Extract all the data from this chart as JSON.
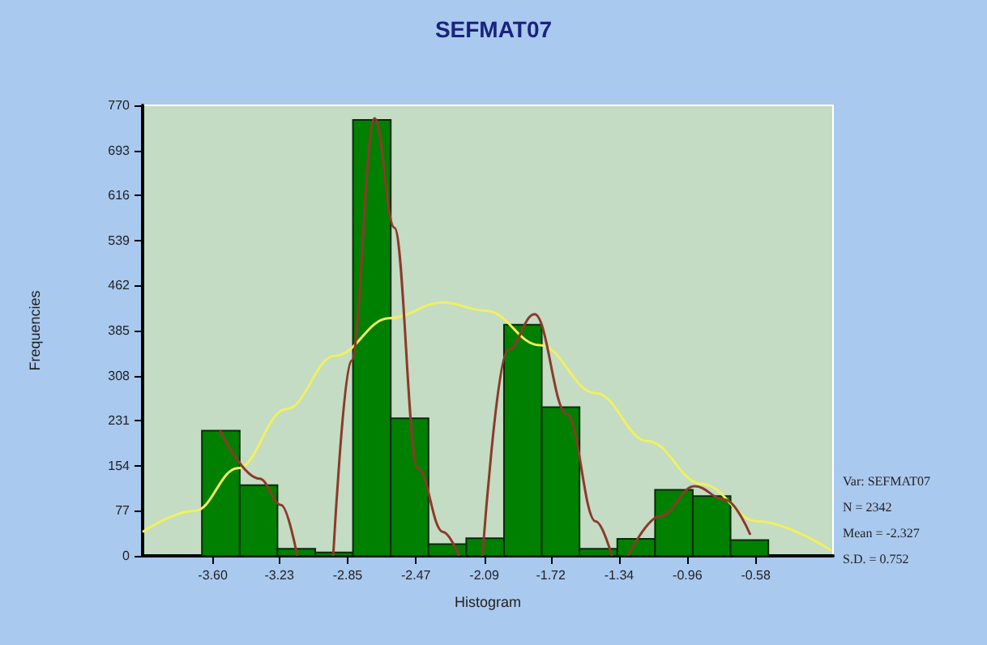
{
  "chart_data": {
    "type": "histogram",
    "title": "SEFMAT07",
    "xlabel": "Histogram",
    "ylabel": "Frequencies",
    "bins": [
      -3.66,
      -3.45,
      -3.24,
      -3.03,
      -2.82,
      -2.61,
      -2.4,
      -2.19,
      -1.98,
      -1.77,
      -1.56,
      -1.35,
      -1.14,
      -0.93,
      -0.72,
      -0.51
    ],
    "values": [
      214,
      121,
      12,
      6,
      745,
      235,
      20,
      30,
      395,
      254,
      12,
      29,
      113,
      102,
      27
    ],
    "color": "#008000",
    "series": [
      {
        "type": "line",
        "color": "#f0f060",
        "x": [
          -3.99,
          -3.7,
          -3.46,
          -3.19,
          -2.92,
          -2.62,
          -2.32,
          -2.08,
          -1.78,
          -1.47,
          -1.18,
          -0.88,
          -0.57,
          -0.16
        ],
        "values": [
          41,
          77,
          150,
          251,
          342,
          406,
          433,
          419,
          360,
          278,
          196,
          123,
          59,
          9
        ]
      },
      {
        "type": "line",
        "color": "#8b3a2a",
        "x": [
          -3.56,
          -3.34,
          -3.22,
          -3.13,
          -3.03,
          -2.93,
          -2.83,
          -2.7,
          -2.59,
          -2.46,
          -2.32,
          -2.23,
          -2.16,
          -2.1,
          -1.96,
          -1.81,
          -1.63,
          -1.47,
          -1.38,
          -1.33,
          -1.29,
          -1.11,
          -0.92,
          -0.75,
          -0.61
        ],
        "values": [
          214,
          132,
          87,
          0,
          null,
          0,
          333,
          748,
          561,
          150,
          41,
          0,
          null,
          0,
          351,
          413,
          242,
          59,
          0,
          null,
          0,
          68,
          119,
          96,
          36
        ]
      }
    ],
    "xlim": [
      -3.99,
      -0.15
    ],
    "xticks": [
      {
        "value": -3.6,
        "label": "-3.60"
      },
      -3.23,
      -2.85,
      -2.47,
      -2.09,
      -1.72,
      -1.34,
      -0.96,
      -0.58
    ],
    "ylim": [
      0,
      770
    ],
    "yticks": [
      0,
      77,
      154,
      231,
      308,
      385,
      462,
      539,
      616,
      693,
      770
    ],
    "annotations": [
      "Var: SEFMAT07",
      "N = 2342",
      "Mean = -2.327",
      "S.D. = 0.752"
    ],
    "grid": false,
    "legend": false
  }
}
